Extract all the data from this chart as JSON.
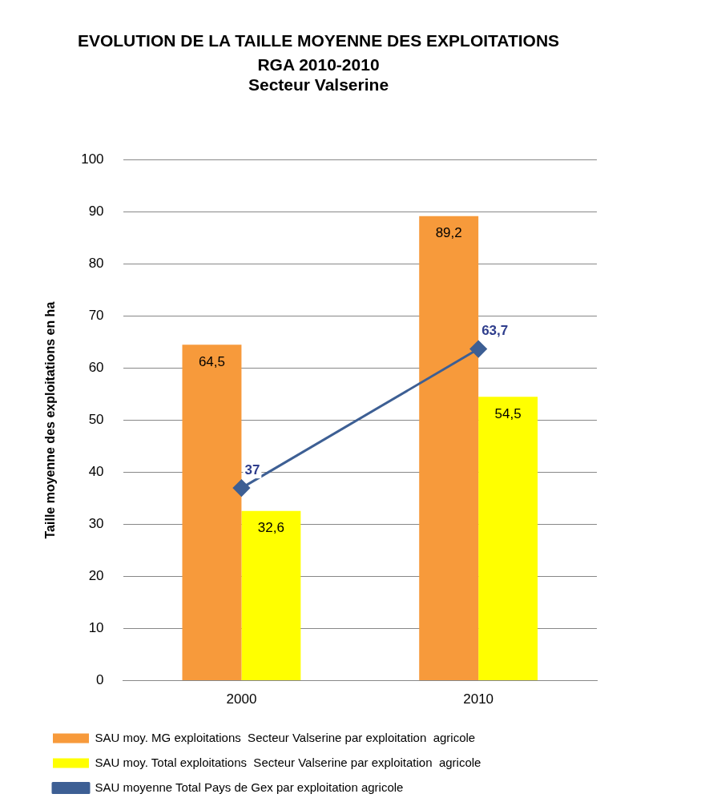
{
  "chart_data": {
    "type": "bar",
    "title": "EVOLUTION DE LA TAILLE MOYENNE DES EXPLOITATIONS",
    "subtitle": "RGA 2010-2010\nSecteur Valserine",
    "ylabel": "Taille moyenne des exploitations en ha",
    "categories": [
      "2000",
      "2010"
    ],
    "series": [
      {
        "name": "SAU moy. MG exploitations  Secteur Valserine par exploitation  agricole",
        "color": "#f79a3b",
        "values": [
          64.5,
          89.2
        ],
        "value_labels": [
          "64,5",
          "89,2"
        ]
      },
      {
        "name": "SAU moy. Total exploitations  Secteur Valserine par exploitation  agricole",
        "color": "#ffff00",
        "values": [
          32.6,
          54.5
        ],
        "value_labels": [
          "32,6",
          "54,5"
        ]
      },
      {
        "name": "SAU moyenne Total Pays de Gex par exploitation agricole",
        "type": "line",
        "color": "#3d5f94",
        "values": [
          37,
          63.7
        ],
        "value_labels": [
          "37",
          "63,7"
        ]
      }
    ],
    "ylim": [
      0,
      100
    ],
    "yticks": [
      0,
      10,
      20,
      30,
      40,
      50,
      60,
      70,
      80,
      90,
      100
    ],
    "grid": "y",
    "legend": "bottom",
    "marker": "diamond"
  }
}
